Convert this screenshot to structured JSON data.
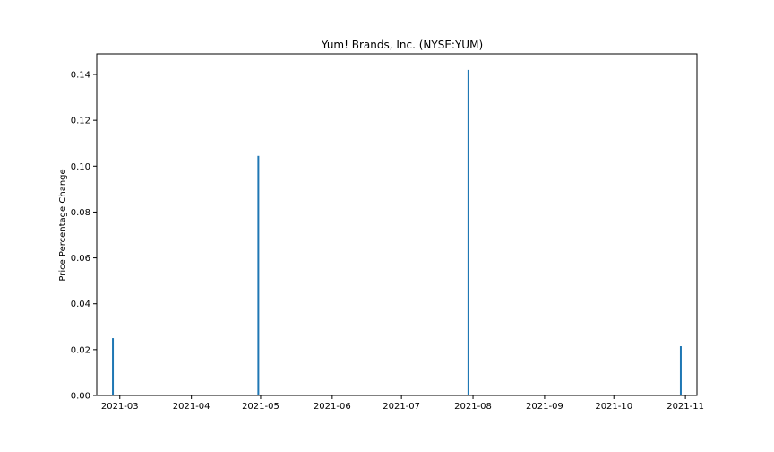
{
  "chart_data": {
    "type": "bar",
    "title": "Yum! Brands, Inc. (NYSE:YUM)",
    "xlabel": "",
    "ylabel": "Price Percentage Change",
    "x_type": "date",
    "xlim": [
      "2021-02-19",
      "2021-11-06"
    ],
    "ylim": [
      0,
      0.149
    ],
    "x_ticks": [
      "2021-03",
      "2021-04",
      "2021-05",
      "2021-06",
      "2021-07",
      "2021-08",
      "2021-09",
      "2021-10",
      "2021-11"
    ],
    "y_ticks": [
      "0.00",
      "0.02",
      "0.04",
      "0.06",
      "0.08",
      "0.10",
      "0.12",
      "0.14"
    ],
    "grid": false,
    "color": "#1f77b4",
    "points": [
      {
        "date": "2021-02-26",
        "value": 0.025
      },
      {
        "date": "2021-04-30",
        "value": 0.1045
      },
      {
        "date": "2021-07-30",
        "value": 0.142
      },
      {
        "date": "2021-10-30",
        "value": 0.0215
      }
    ]
  }
}
